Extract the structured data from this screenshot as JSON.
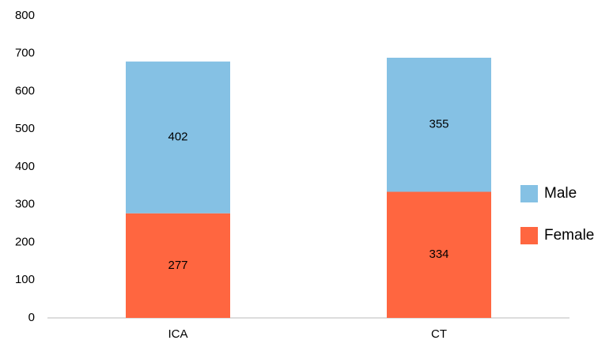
{
  "chart_data": {
    "type": "stacked_bar",
    "categories": [
      "ICA",
      "CT"
    ],
    "series": [
      {
        "name": "Female",
        "color": "#ff6640",
        "values": [
          277,
          334
        ]
      },
      {
        "name": "Male",
        "color": "#85c1e4",
        "values": [
          402,
          355
        ]
      }
    ],
    "ylim": [
      0,
      800
    ],
    "yticks": [
      0,
      100,
      200,
      300,
      400,
      500,
      600,
      700,
      800
    ],
    "grid": false,
    "legend": "right"
  }
}
